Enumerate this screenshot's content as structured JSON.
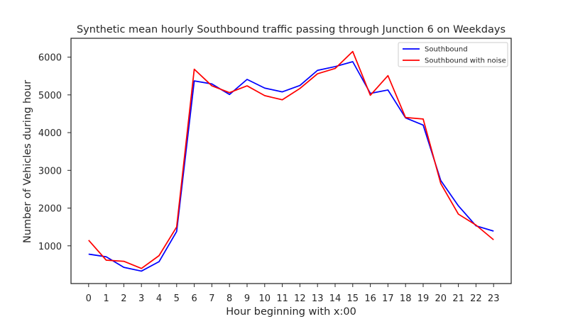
{
  "chart_data": {
    "type": "line",
    "title": "Synthetic mean hourly Southbound traffic passing through Junction 6 on Weekdays",
    "xlabel": "Hour beginning with x:00",
    "ylabel": "Number of Vehicles during hour",
    "x": [
      0,
      1,
      2,
      3,
      4,
      5,
      6,
      7,
      8,
      9,
      10,
      11,
      12,
      13,
      14,
      15,
      16,
      17,
      18,
      19,
      20,
      21,
      22,
      23
    ],
    "xticks": [
      "0",
      "1",
      "2",
      "3",
      "4",
      "5",
      "6",
      "7",
      "8",
      "9",
      "10",
      "11",
      "12",
      "13",
      "14",
      "15",
      "16",
      "17",
      "18",
      "19",
      "20",
      "21",
      "22",
      "23"
    ],
    "yticks": [
      1000,
      2000,
      3000,
      4000,
      5000,
      6000
    ],
    "ytick_labels": [
      "1000",
      "2000",
      "3000",
      "4000",
      "5000",
      "6000"
    ],
    "xlim": [
      -1,
      24
    ],
    "ylim": [
      0,
      6500
    ],
    "grid": false,
    "legend": "top-right",
    "series": [
      {
        "name": "Southbound",
        "color": "#0000ff",
        "values": [
          780,
          710,
          430,
          330,
          580,
          1380,
          5370,
          5290,
          5010,
          5410,
          5180,
          5080,
          5250,
          5650,
          5750,
          5880,
          5040,
          5130,
          4390,
          4200,
          2730,
          2060,
          1530,
          1390
        ]
      },
      {
        "name": "Southbound with noise",
        "color": "#ff0000",
        "values": [
          1150,
          620,
          590,
          400,
          740,
          1500,
          5680,
          5240,
          5060,
          5240,
          4980,
          4870,
          5170,
          5560,
          5700,
          6150,
          4990,
          5510,
          4400,
          4360,
          2650,
          1840,
          1550,
          1160
        ]
      }
    ]
  }
}
